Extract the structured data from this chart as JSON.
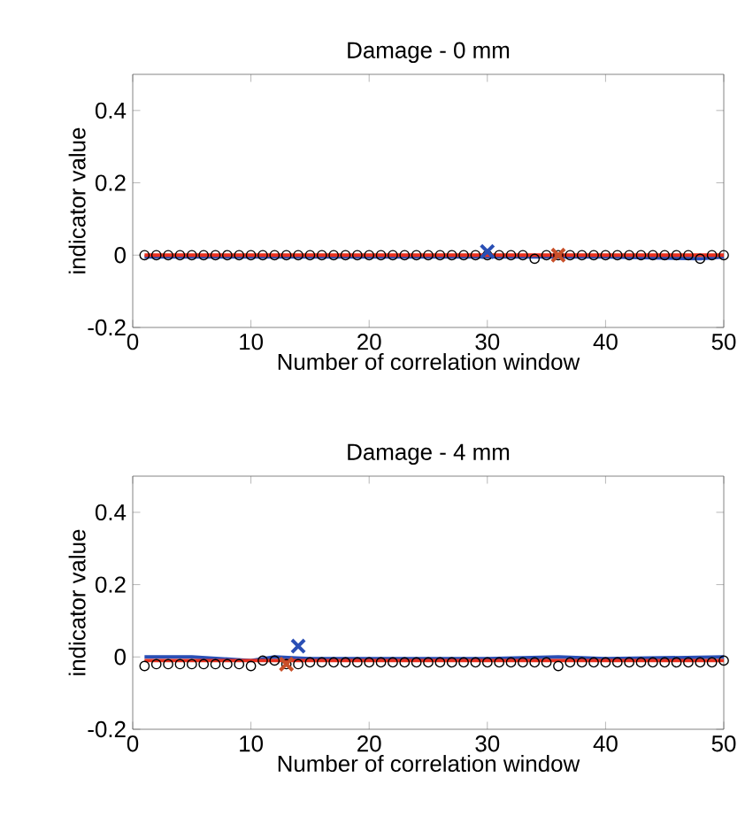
{
  "chart_data": [
    {
      "type": "scatter",
      "title": "Damage - 0 mm",
      "xlabel": "Number of correlation window",
      "ylabel": "indicator value",
      "xlim": [
        0,
        50
      ],
      "ylim": [
        -0.2,
        0.5
      ],
      "xticks": [
        0,
        10,
        20,
        30,
        40,
        50
      ],
      "yticks": [
        -0.2,
        0,
        0.2,
        0.4
      ],
      "series": [
        {
          "type": "line",
          "color": "#2a4fb5",
          "marker": "none",
          "x": [
            1,
            10,
            20,
            30,
            40,
            48,
            50
          ],
          "values": [
            -0.005,
            -0.005,
            -0.005,
            -0.005,
            -0.005,
            -0.01,
            -0.005
          ]
        },
        {
          "color": "#000000",
          "marker": "circle",
          "x": [
            1,
            2,
            3,
            4,
            5,
            6,
            7,
            8,
            9,
            10,
            11,
            12,
            13,
            14,
            15,
            16,
            17,
            18,
            19,
            20,
            21,
            22,
            23,
            24,
            25,
            26,
            27,
            28,
            29,
            30,
            31,
            32,
            33,
            34,
            35,
            36,
            37,
            38,
            39,
            40,
            41,
            42,
            43,
            44,
            45,
            46,
            47,
            48,
            49,
            50
          ],
          "values": [
            0,
            0,
            0,
            0,
            0,
            0,
            0,
            0,
            0,
            0,
            0,
            0,
            0,
            0,
            0,
            0,
            0,
            0,
            0,
            0,
            0,
            0,
            0,
            0,
            0,
            0,
            0,
            0,
            0,
            0,
            0,
            0,
            0,
            -0.01,
            0,
            0,
            0,
            0,
            0,
            0,
            0,
            0,
            0,
            0,
            0,
            0,
            0,
            -0.01,
            0,
            0
          ]
        },
        {
          "type": "line",
          "color": "#e8301f",
          "marker": "none",
          "x": [
            1,
            50
          ],
          "values": [
            0,
            0
          ]
        },
        {
          "color": "#2a4fb5",
          "marker": "cross",
          "x": [
            30
          ],
          "values": [
            0.01
          ]
        },
        {
          "color": "#c8502a",
          "marker": "cross",
          "x": [
            36
          ],
          "values": [
            0
          ]
        }
      ]
    },
    {
      "type": "scatter",
      "title": "Damage - 4 mm",
      "xlabel": "Number of correlation window",
      "ylabel": "indicator value",
      "xlim": [
        0,
        50
      ],
      "ylim": [
        -0.2,
        0.5
      ],
      "xticks": [
        0,
        10,
        20,
        30,
        40,
        50
      ],
      "yticks": [
        -0.2,
        0,
        0.2,
        0.4
      ],
      "series": [
        {
          "type": "line",
          "color": "#2a4fb5",
          "marker": "none",
          "x": [
            1,
            5,
            10,
            12,
            15,
            20,
            30,
            36,
            40,
            50
          ],
          "values": [
            0,
            0,
            -0.01,
            0,
            -0.005,
            -0.005,
            -0.005,
            0,
            -0.005,
            0
          ]
        },
        {
          "color": "#000000",
          "marker": "circle",
          "x": [
            1,
            2,
            3,
            4,
            5,
            6,
            7,
            8,
            9,
            10,
            11,
            12,
            13,
            14,
            15,
            16,
            17,
            18,
            19,
            20,
            21,
            22,
            23,
            24,
            25,
            26,
            27,
            28,
            29,
            30,
            31,
            32,
            33,
            34,
            35,
            36,
            37,
            38,
            39,
            40,
            41,
            42,
            43,
            44,
            45,
            46,
            47,
            48,
            49,
            50
          ],
          "values": [
            -0.025,
            -0.02,
            -0.02,
            -0.02,
            -0.02,
            -0.02,
            -0.02,
            -0.02,
            -0.02,
            -0.025,
            -0.01,
            -0.01,
            -0.02,
            -0.02,
            -0.015,
            -0.015,
            -0.015,
            -0.015,
            -0.015,
            -0.015,
            -0.015,
            -0.015,
            -0.015,
            -0.015,
            -0.015,
            -0.015,
            -0.015,
            -0.015,
            -0.015,
            -0.015,
            -0.015,
            -0.015,
            -0.015,
            -0.015,
            -0.015,
            -0.025,
            -0.015,
            -0.015,
            -0.015,
            -0.015,
            -0.015,
            -0.015,
            -0.015,
            -0.015,
            -0.015,
            -0.015,
            -0.015,
            -0.015,
            -0.015,
            -0.01
          ]
        },
        {
          "type": "line",
          "color": "#e8301f",
          "marker": "none",
          "x": [
            1,
            50
          ],
          "values": [
            -0.01,
            -0.01
          ]
        },
        {
          "color": "#2a4fb5",
          "marker": "cross",
          "x": [
            14
          ],
          "values": [
            0.03
          ]
        },
        {
          "color": "#c8502a",
          "marker": "cross",
          "x": [
            13
          ],
          "values": [
            -0.02
          ]
        }
      ]
    }
  ]
}
